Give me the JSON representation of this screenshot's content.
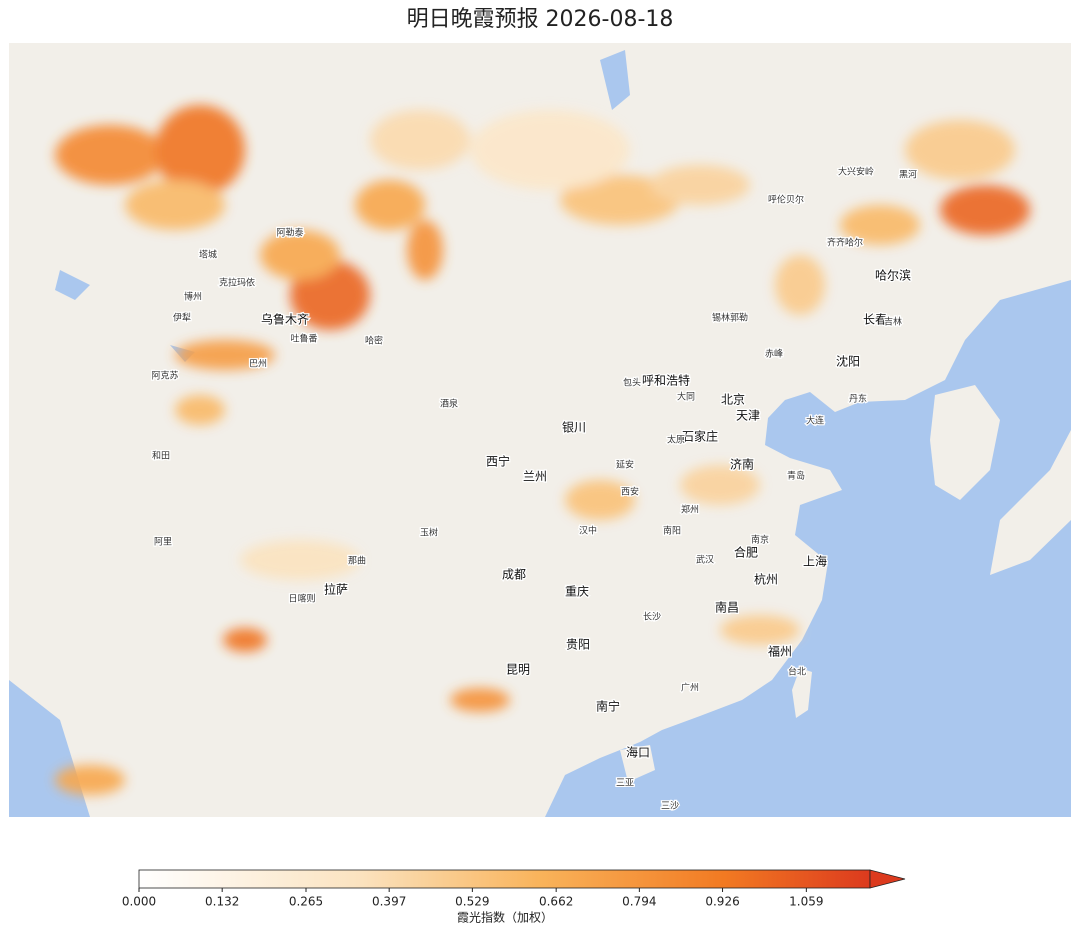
{
  "title": "明日晚霞预报  2026-08-18",
  "colorbar": {
    "label": "霞光指数（加权）",
    "clim": [
      0,
      1.16
    ],
    "ticks": [
      {
        "value": 0,
        "label": "0.000"
      },
      {
        "value": 0.132,
        "label": "0.132"
      },
      {
        "value": 0.265,
        "label": "0.265"
      },
      {
        "value": 0.397,
        "label": "0.397"
      },
      {
        "value": 0.529,
        "label": "0.529"
      },
      {
        "value": 0.662,
        "label": "0.662"
      },
      {
        "value": 0.794,
        "label": "0.794"
      },
      {
        "value": 0.926,
        "label": "0.926"
      },
      {
        "value": 1.059,
        "label": "1.059"
      }
    ]
  },
  "heat": [
    0.85,
    0.95,
    0.6,
    1.0,
    0.7,
    0.8,
    0.7,
    0.75,
    0.55,
    0.45,
    1.0,
    0.5,
    0.6,
    0.95,
    0.7,
    0.8,
    0.55,
    0.45,
    0.5,
    0.3,
    0.5,
    0.4,
    0.35,
    0.6
  ],
  "cities": [
    "乌鲁木齐",
    "哈尔滨",
    "长春",
    "沈阳",
    "北京",
    "天津",
    "石家庄",
    "太原",
    "呼和浩特",
    "济南",
    "郑州",
    "西安",
    "兰州",
    "银川",
    "西宁",
    "成都",
    "重庆",
    "贵阳",
    "昆明",
    "南宁",
    "广州",
    "海口",
    "三亚",
    "三沙",
    "拉萨",
    "长沙",
    "武汉",
    "南昌",
    "杭州",
    "合肥",
    "南京",
    "上海",
    "福州",
    "吉林",
    "大连",
    "齐齐哈尔",
    "呼伦贝尔",
    "阿勒泰",
    "塔城",
    "伊犁",
    "阿克苏",
    "和田",
    "阿里",
    "日喀则",
    "那曲",
    "玉树",
    "大兴安岭",
    "黑河",
    "哈密",
    "吐鲁番",
    "克拉玛依",
    "博州",
    "巴州",
    "酒泉",
    "锡林郭勒",
    "赤峰",
    "包头",
    "大同",
    "延安",
    "汉中",
    "南阳",
    "台北",
    "丹东",
    "青岛"
  ]
}
